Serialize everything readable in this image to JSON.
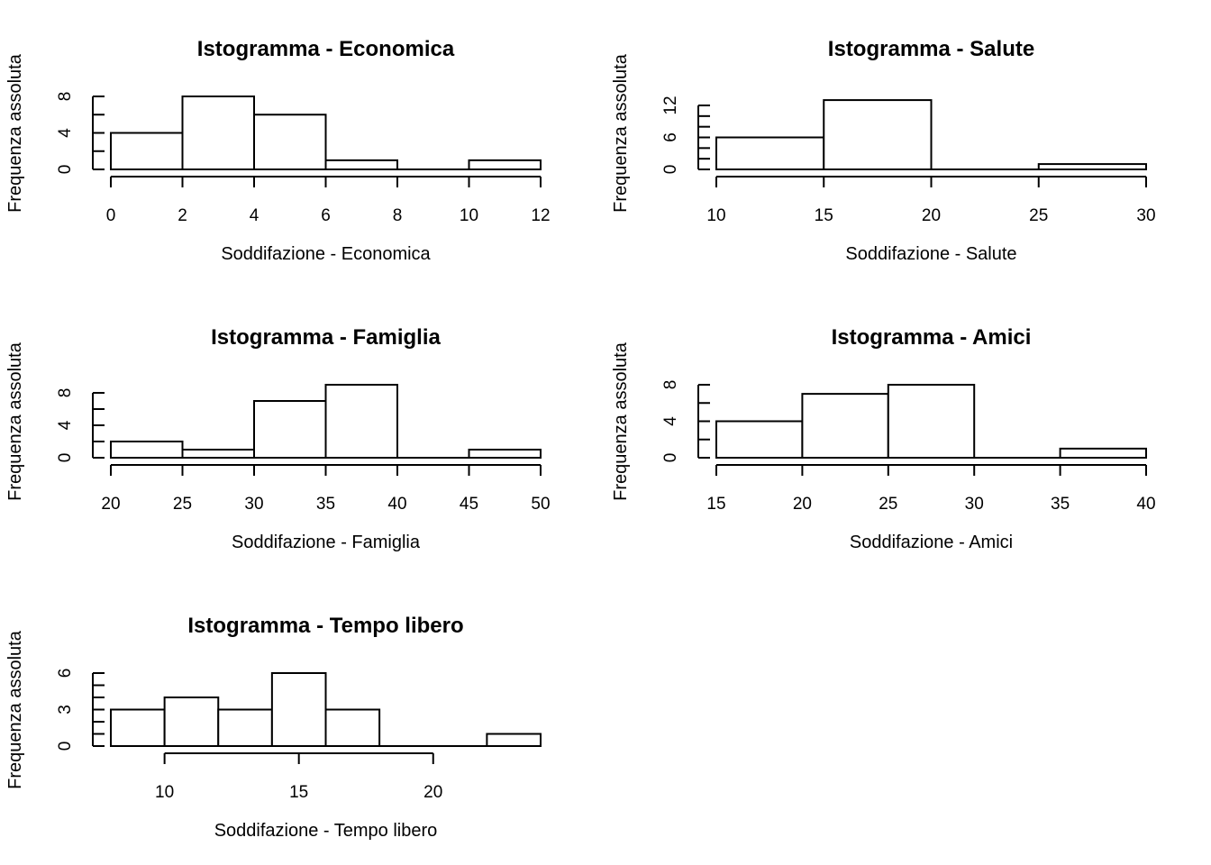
{
  "chart_data": [
    {
      "type": "bar",
      "title": "Istogramma -  Economica",
      "xlabel": "Soddifazione -  Economica",
      "ylabel": "Frequenza assoluta",
      "bins": [
        [
          0,
          2
        ],
        [
          2,
          4
        ],
        [
          4,
          6
        ],
        [
          6,
          8
        ],
        [
          8,
          10
        ],
        [
          10,
          12
        ]
      ],
      "values": [
        4,
        8,
        6,
        1,
        0,
        1
      ],
      "xlim": [
        0,
        12
      ],
      "ylim": [
        0,
        8
      ],
      "xticks": [
        0,
        2,
        4,
        6,
        8,
        10,
        12
      ],
      "yticks": [
        0,
        4,
        8
      ],
      "yminor": [
        0,
        2,
        4,
        6,
        8
      ]
    },
    {
      "type": "bar",
      "title": "Istogramma -  Salute",
      "xlabel": "Soddifazione -  Salute",
      "ylabel": "Frequenza assoluta",
      "bins": [
        [
          10,
          15
        ],
        [
          15,
          20
        ],
        [
          20,
          25
        ],
        [
          25,
          30
        ]
      ],
      "values": [
        6,
        13,
        0,
        1
      ],
      "xlim": [
        10,
        30
      ],
      "ylim": [
        0,
        13
      ],
      "xticks": [
        10,
        15,
        20,
        25,
        30
      ],
      "yticks": [
        0,
        6,
        12
      ],
      "yminor": [
        0,
        2,
        4,
        6,
        8,
        10,
        12
      ]
    },
    {
      "type": "bar",
      "title": "Istogramma -  Famiglia",
      "xlabel": "Soddifazione -  Famiglia",
      "ylabel": "Frequenza assoluta",
      "bins": [
        [
          20,
          25
        ],
        [
          25,
          30
        ],
        [
          30,
          35
        ],
        [
          35,
          40
        ],
        [
          40,
          45
        ],
        [
          45,
          50
        ]
      ],
      "values": [
        2,
        1,
        7,
        9,
        0,
        1
      ],
      "xlim": [
        20,
        50
      ],
      "ylim": [
        0,
        8
      ],
      "xticks": [
        20,
        25,
        30,
        35,
        40,
        45,
        50
      ],
      "yticks": [
        0,
        4,
        8
      ],
      "yminor": [
        0,
        2,
        4,
        6,
        8
      ]
    },
    {
      "type": "bar",
      "title": "Istogramma -  Amici",
      "xlabel": "Soddifazione -  Amici",
      "ylabel": "Frequenza assoluta",
      "bins": [
        [
          15,
          20
        ],
        [
          20,
          25
        ],
        [
          25,
          30
        ],
        [
          30,
          35
        ],
        [
          35,
          40
        ]
      ],
      "values": [
        4,
        7,
        8,
        0,
        1
      ],
      "xlim": [
        15,
        40
      ],
      "ylim": [
        0,
        8
      ],
      "xticks": [
        15,
        20,
        25,
        30,
        35,
        40
      ],
      "yticks": [
        0,
        4,
        8
      ],
      "yminor": [
        0,
        2,
        4,
        6,
        8
      ]
    },
    {
      "type": "bar",
      "title": "Istogramma -  Tempo libero",
      "xlabel": "Soddifazione -  Tempo libero",
      "ylabel": "Frequenza assoluta",
      "bins": [
        [
          8,
          10
        ],
        [
          10,
          12
        ],
        [
          12,
          14
        ],
        [
          14,
          16
        ],
        [
          16,
          18
        ],
        [
          18,
          20
        ],
        [
          20,
          22
        ],
        [
          22,
          24
        ]
      ],
      "values": [
        3,
        4,
        3,
        6,
        3,
        0,
        0,
        1
      ],
      "xlim": [
        8,
        24
      ],
      "ylim": [
        0,
        6
      ],
      "xaxis_range": [
        10,
        20
      ],
      "xticks": [
        10,
        15,
        20
      ],
      "yticks": [
        0,
        3,
        6
      ],
      "yminor": [
        0,
        1,
        2,
        3,
        4,
        5,
        6
      ]
    }
  ]
}
